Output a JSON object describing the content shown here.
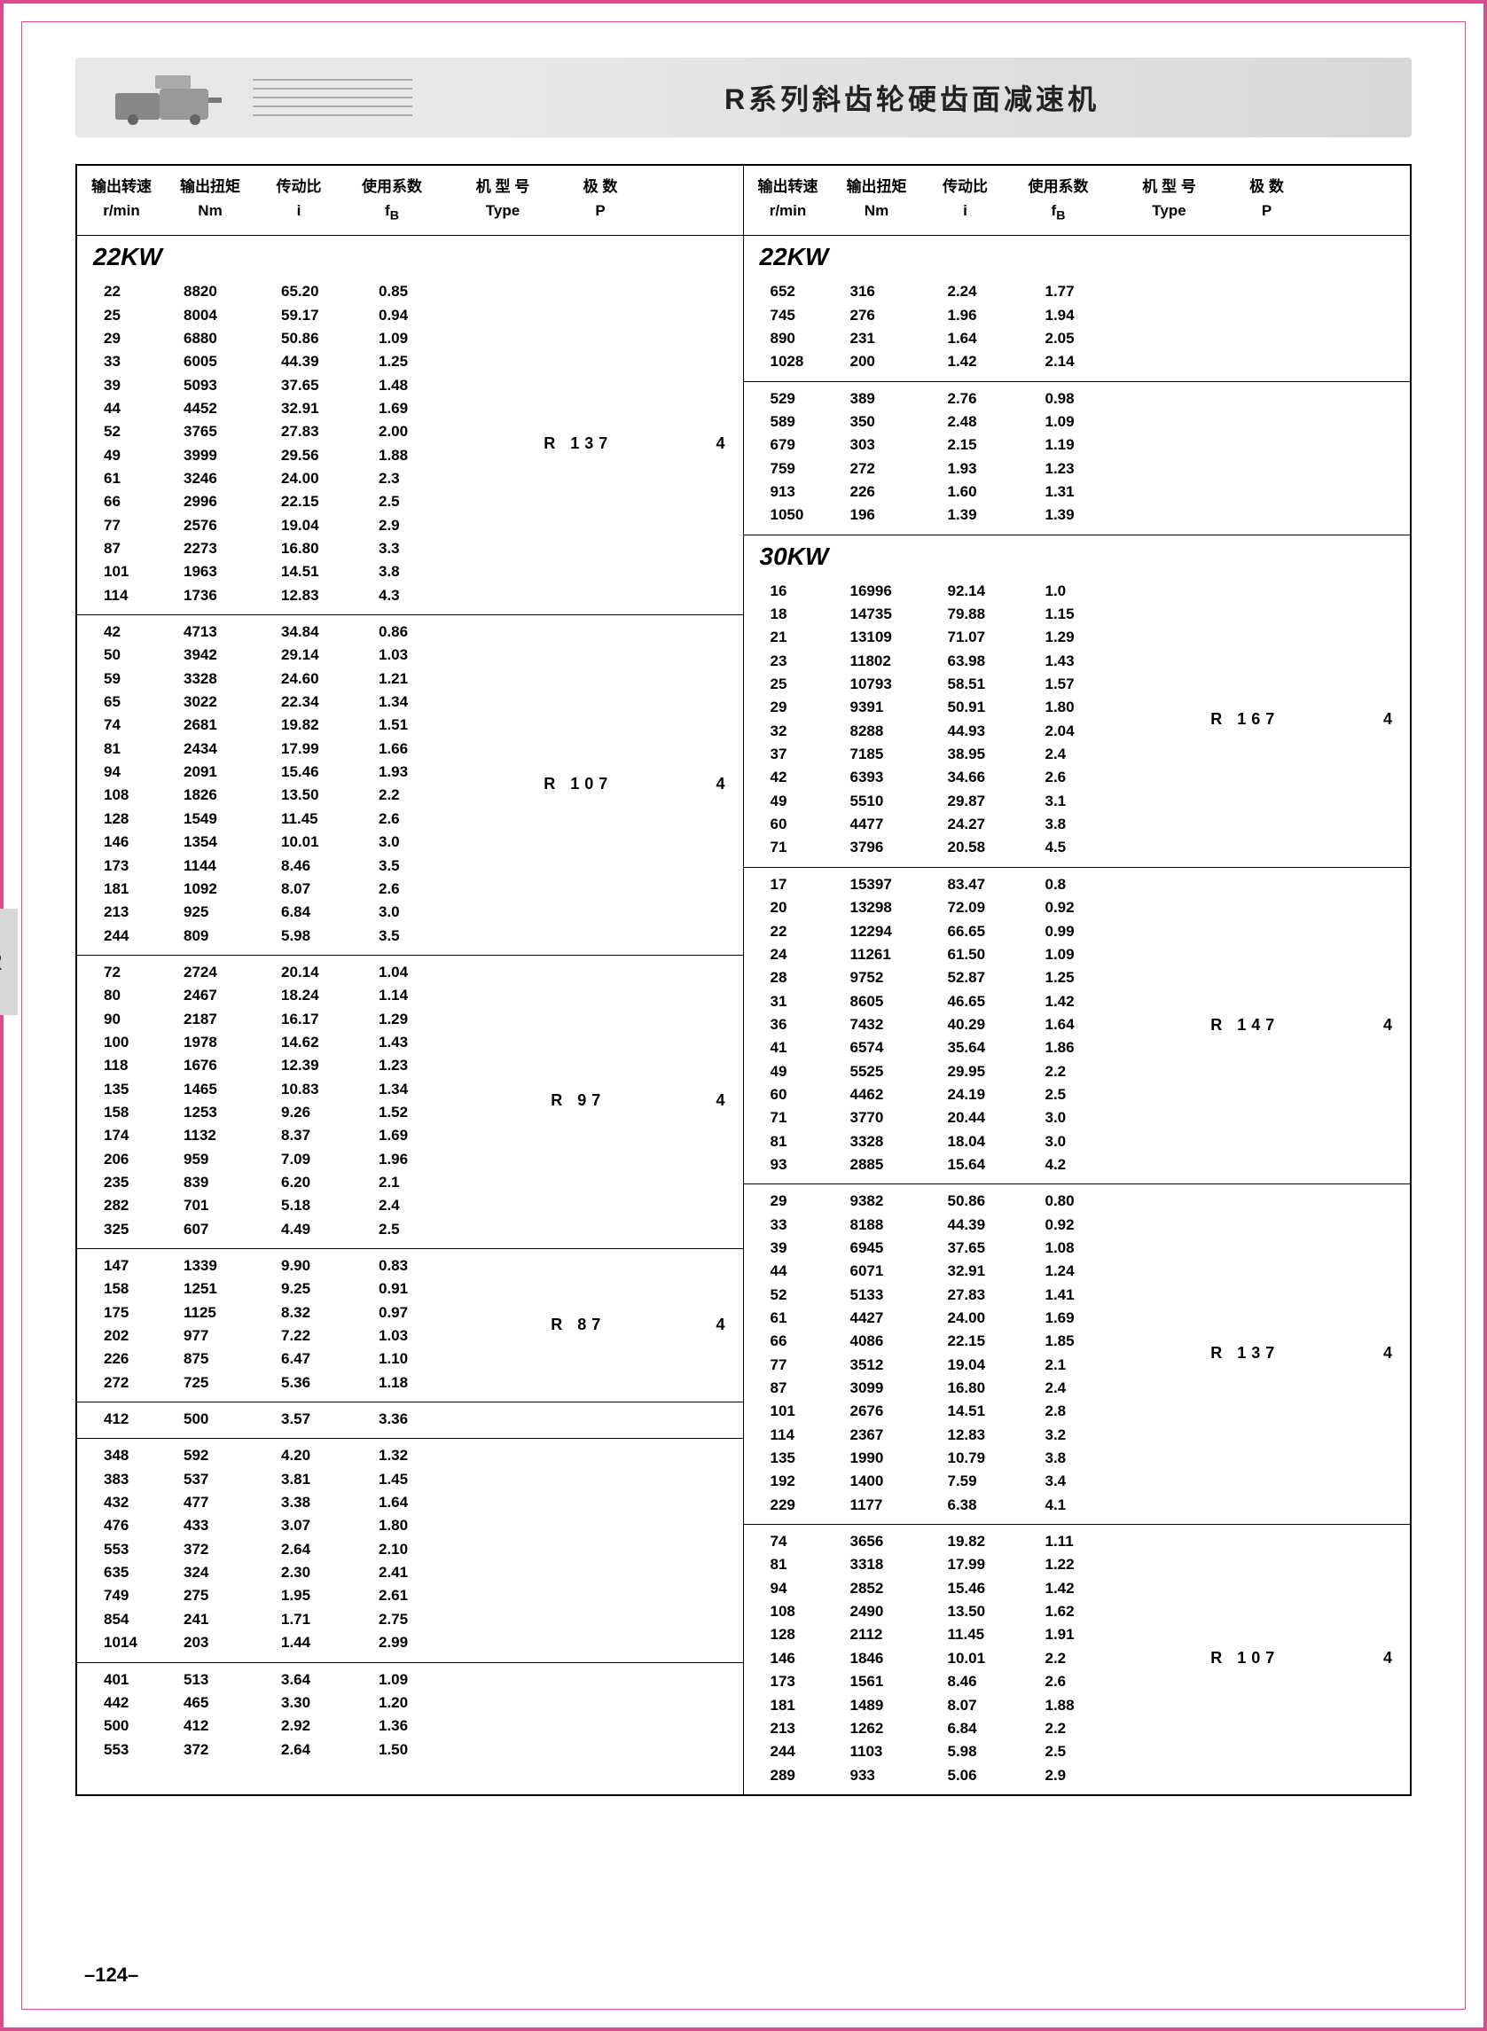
{
  "header": {
    "title": "R系列斜齿轮硬齿面减速机"
  },
  "side_tab": "R",
  "page_number": "–124–",
  "columns": {
    "c1": {
      "top": "输出转速",
      "sub": "r/min"
    },
    "c2": {
      "top": "输出扭矩",
      "sub": "Nm"
    },
    "c3": {
      "top": "传动比",
      "sub": "i"
    },
    "c4": {
      "top": "使用系数",
      "sub": "f<sub>B</sub>"
    },
    "c5": {
      "top": "机 型 号",
      "sub": "Type"
    },
    "c6": {
      "top": "极 数",
      "sub": "P"
    }
  },
  "left": {
    "title1": "22KW",
    "blocks": [
      {
        "type": "R 137",
        "p": "4",
        "rows": [
          [
            "22",
            "8820",
            "65.20",
            "0.85"
          ],
          [
            "25",
            "8004",
            "59.17",
            "0.94"
          ],
          [
            "29",
            "6880",
            "50.86",
            "1.09"
          ],
          [
            "33",
            "6005",
            "44.39",
            "1.25"
          ],
          [
            "39",
            "5093",
            "37.65",
            "1.48"
          ],
          [
            "44",
            "4452",
            "32.91",
            "1.69"
          ],
          [
            "52",
            "3765",
            "27.83",
            "2.00"
          ],
          [
            "49",
            "3999",
            "29.56",
            "1.88"
          ],
          [
            "61",
            "3246",
            "24.00",
            "2.3"
          ],
          [
            "66",
            "2996",
            "22.15",
            "2.5"
          ],
          [
            "77",
            "2576",
            "19.04",
            "2.9"
          ],
          [
            "87",
            "2273",
            "16.80",
            "3.3"
          ],
          [
            "101",
            "1963",
            "14.51",
            "3.8"
          ],
          [
            "114",
            "1736",
            "12.83",
            "4.3"
          ]
        ]
      },
      {
        "type": "R 107",
        "p": "4",
        "rows": [
          [
            "42",
            "4713",
            "34.84",
            "0.86"
          ],
          [
            "50",
            "3942",
            "29.14",
            "1.03"
          ],
          [
            "59",
            "3328",
            "24.60",
            "1.21"
          ],
          [
            "65",
            "3022",
            "22.34",
            "1.34"
          ],
          [
            "74",
            "2681",
            "19.82",
            "1.51"
          ],
          [
            "81",
            "2434",
            "17.99",
            "1.66"
          ],
          [
            "94",
            "2091",
            "15.46",
            "1.93"
          ],
          [
            "108",
            "1826",
            "13.50",
            "2.2"
          ],
          [
            "128",
            "1549",
            "11.45",
            "2.6"
          ],
          [
            "146",
            "1354",
            "10.01",
            "3.0"
          ],
          [
            "173",
            "1144",
            "8.46",
            "3.5"
          ],
          [
            "181",
            "1092",
            "8.07",
            "2.6"
          ],
          [
            "213",
            "925",
            "6.84",
            "3.0"
          ],
          [
            "244",
            "809",
            "5.98",
            "3.5"
          ]
        ]
      },
      {
        "type": "R 97",
        "p": "4",
        "rows": [
          [
            "72",
            "2724",
            "20.14",
            "1.04"
          ],
          [
            "80",
            "2467",
            "18.24",
            "1.14"
          ],
          [
            "90",
            "2187",
            "16.17",
            "1.29"
          ],
          [
            "100",
            "1978",
            "14.62",
            "1.43"
          ],
          [
            "118",
            "1676",
            "12.39",
            "1.23"
          ],
          [
            "135",
            "1465",
            "10.83",
            "1.34"
          ],
          [
            "158",
            "1253",
            "9.26",
            "1.52"
          ],
          [
            "174",
            "1132",
            "8.37",
            "1.69"
          ],
          [
            "206",
            "959",
            "7.09",
            "1.96"
          ],
          [
            "235",
            "839",
            "6.20",
            "2.1"
          ],
          [
            "282",
            "701",
            "5.18",
            "2.4"
          ],
          [
            "325",
            "607",
            "4.49",
            "2.5"
          ]
        ]
      },
      {
        "type": "R 87",
        "p": "4",
        "rows": [
          [
            "147",
            "1339",
            "9.90",
            "0.83"
          ],
          [
            "158",
            "1251",
            "9.25",
            "0.91"
          ],
          [
            "175",
            "1125",
            "8.32",
            "0.97"
          ],
          [
            "202",
            "977",
            "7.22",
            "1.03"
          ],
          [
            "226",
            "875",
            "6.47",
            "1.10"
          ],
          [
            "272",
            "725",
            "5.36",
            "1.18"
          ]
        ]
      },
      {
        "type": "",
        "p": "",
        "rows": [
          [
            "412",
            "500",
            "3.57",
            "3.36"
          ]
        ]
      },
      {
        "type": "",
        "p": "",
        "rows": [
          [
            "348",
            "592",
            "4.20",
            "1.32"
          ],
          [
            "383",
            "537",
            "3.81",
            "1.45"
          ],
          [
            "432",
            "477",
            "3.38",
            "1.64"
          ],
          [
            "476",
            "433",
            "3.07",
            "1.80"
          ],
          [
            "553",
            "372",
            "2.64",
            "2.10"
          ],
          [
            "635",
            "324",
            "2.30",
            "2.41"
          ],
          [
            "749",
            "275",
            "1.95",
            "2.61"
          ],
          [
            "854",
            "241",
            "1.71",
            "2.75"
          ],
          [
            "1014",
            "203",
            "1.44",
            "2.99"
          ]
        ]
      },
      {
        "type": "",
        "p": "",
        "rows": [
          [
            "401",
            "513",
            "3.64",
            "1.09"
          ],
          [
            "442",
            "465",
            "3.30",
            "1.20"
          ],
          [
            "500",
            "412",
            "2.92",
            "1.36"
          ],
          [
            "553",
            "372",
            "2.64",
            "1.50"
          ]
        ]
      }
    ]
  },
  "right": {
    "title1": "22KW",
    "title2": "30KW",
    "blocks1": [
      {
        "type": "",
        "p": "",
        "rows": [
          [
            "652",
            "316",
            "2.24",
            "1.77"
          ],
          [
            "745",
            "276",
            "1.96",
            "1.94"
          ],
          [
            "890",
            "231",
            "1.64",
            "2.05"
          ],
          [
            "1028",
            "200",
            "1.42",
            "2.14"
          ]
        ]
      },
      {
        "type": "",
        "p": "",
        "rows": [
          [
            "529",
            "389",
            "2.76",
            "0.98"
          ],
          [
            "589",
            "350",
            "2.48",
            "1.09"
          ],
          [
            "679",
            "303",
            "2.15",
            "1.19"
          ],
          [
            "759",
            "272",
            "1.93",
            "1.23"
          ],
          [
            "913",
            "226",
            "1.60",
            "1.31"
          ],
          [
            "1050",
            "196",
            "1.39",
            "1.39"
          ]
        ]
      }
    ],
    "blocks2": [
      {
        "type": "R 167",
        "p": "4",
        "rows": [
          [
            "16",
            "16996",
            "92.14",
            "1.0"
          ],
          [
            "18",
            "14735",
            "79.88",
            "1.15"
          ],
          [
            "21",
            "13109",
            "71.07",
            "1.29"
          ],
          [
            "23",
            "11802",
            "63.98",
            "1.43"
          ],
          [
            "25",
            "10793",
            "58.51",
            "1.57"
          ],
          [
            "29",
            "9391",
            "50.91",
            "1.80"
          ],
          [
            "32",
            "8288",
            "44.93",
            "2.04"
          ],
          [
            "37",
            "7185",
            "38.95",
            "2.4"
          ],
          [
            "42",
            "6393",
            "34.66",
            "2.6"
          ],
          [
            "49",
            "5510",
            "29.87",
            "3.1"
          ],
          [
            "60",
            "4477",
            "24.27",
            "3.8"
          ],
          [
            "71",
            "3796",
            "20.58",
            "4.5"
          ]
        ]
      },
      {
        "type": "R 147",
        "p": "4",
        "rows": [
          [
            "17",
            "15397",
            "83.47",
            "0.8"
          ],
          [
            "20",
            "13298",
            "72.09",
            "0.92"
          ],
          [
            "22",
            "12294",
            "66.65",
            "0.99"
          ],
          [
            "24",
            "11261",
            "61.50",
            "1.09"
          ],
          [
            "28",
            "9752",
            "52.87",
            "1.25"
          ],
          [
            "31",
            "8605",
            "46.65",
            "1.42"
          ],
          [
            "36",
            "7432",
            "40.29",
            "1.64"
          ],
          [
            "41",
            "6574",
            "35.64",
            "1.86"
          ],
          [
            "49",
            "5525",
            "29.95",
            "2.2"
          ],
          [
            "60",
            "4462",
            "24.19",
            "2.5"
          ],
          [
            "71",
            "3770",
            "20.44",
            "3.0"
          ],
          [
            "81",
            "3328",
            "18.04",
            "3.0"
          ],
          [
            "93",
            "2885",
            "15.64",
            "4.2"
          ]
        ]
      },
      {
        "type": "R 137",
        "p": "4",
        "rows": [
          [
            "29",
            "9382",
            "50.86",
            "0.80"
          ],
          [
            "33",
            "8188",
            "44.39",
            "0.92"
          ],
          [
            "39",
            "6945",
            "37.65",
            "1.08"
          ],
          [
            "44",
            "6071",
            "32.91",
            "1.24"
          ],
          [
            "52",
            "5133",
            "27.83",
            "1.41"
          ],
          [
            "61",
            "4427",
            "24.00",
            "1.69"
          ],
          [
            "66",
            "4086",
            "22.15",
            "1.85"
          ],
          [
            "77",
            "3512",
            "19.04",
            "2.1"
          ],
          [
            "87",
            "3099",
            "16.80",
            "2.4"
          ],
          [
            "101",
            "2676",
            "14.51",
            "2.8"
          ],
          [
            "114",
            "2367",
            "12.83",
            "3.2"
          ],
          [
            "135",
            "1990",
            "10.79",
            "3.8"
          ],
          [
            "192",
            "1400",
            "7.59",
            "3.4"
          ],
          [
            "229",
            "1177",
            "6.38",
            "4.1"
          ]
        ]
      },
      {
        "type": "R 107",
        "p": "4",
        "rows": [
          [
            "74",
            "3656",
            "19.82",
            "1.11"
          ],
          [
            "81",
            "3318",
            "17.99",
            "1.22"
          ],
          [
            "94",
            "2852",
            "15.46",
            "1.42"
          ],
          [
            "108",
            "2490",
            "13.50",
            "1.62"
          ],
          [
            "128",
            "2112",
            "11.45",
            "1.91"
          ],
          [
            "146",
            "1846",
            "10.01",
            "2.2"
          ],
          [
            "173",
            "1561",
            "8.46",
            "2.6"
          ],
          [
            "181",
            "1489",
            "8.07",
            "1.88"
          ],
          [
            "213",
            "1262",
            "6.84",
            "2.2"
          ],
          [
            "244",
            "1103",
            "5.98",
            "2.5"
          ],
          [
            "289",
            "933",
            "5.06",
            "2.9"
          ]
        ]
      }
    ]
  }
}
